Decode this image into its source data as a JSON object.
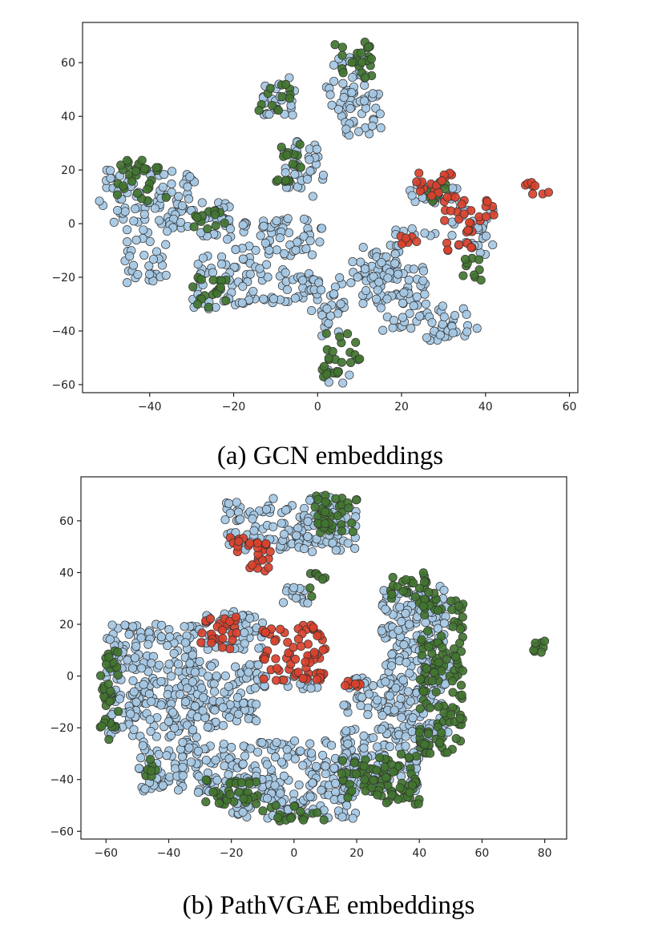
{
  "chart_data": [
    {
      "type": "scatter",
      "caption": "(a) GCN embeddings",
      "title": "",
      "xlabel": "",
      "ylabel": "",
      "xlim": [
        -56,
        62
      ],
      "ylim": [
        -63,
        75
      ],
      "xticks": [
        -40,
        -20,
        0,
        20,
        40,
        60
      ],
      "yticks": [
        -60,
        -40,
        -20,
        0,
        20,
        40,
        60
      ],
      "grid": false,
      "legend": "none",
      "marker_edge_color": "#333333",
      "series": [
        {
          "color": "#a5c8e4",
          "clusters": [
            {
              "x": [
                -52,
                -28
              ],
              "y": [
                0,
                20
              ]
            },
            {
              "x": [
                -46,
                -36
              ],
              "y": [
                -22,
                -2
              ]
            },
            {
              "x": [
                -36,
                -20
              ],
              "y": [
                -5,
                8
              ]
            },
            {
              "x": [
                -30,
                -16
              ],
              "y": [
                -32,
                -12
              ]
            },
            {
              "x": [
                -18,
                -2
              ],
              "y": [
                -30,
                -15
              ]
            },
            {
              "x": [
                -12,
                2
              ],
              "y": [
                -12,
                2
              ]
            },
            {
              "x": [
                -8,
                2
              ],
              "y": [
                10,
                32
              ]
            },
            {
              "x": [
                -14,
                -4
              ],
              "y": [
                40,
                55
              ]
            },
            {
              "x": [
                2,
                12
              ],
              "y": [
                40,
                64
              ]
            },
            {
              "x": [
                6,
                16
              ],
              "y": [
                32,
                50
              ]
            },
            {
              "x": [
                -2,
                8
              ],
              "y": [
                -42,
                -20
              ]
            },
            {
              "x": [
                10,
                22
              ],
              "y": [
                -30,
                -8
              ]
            },
            {
              "x": [
                14,
                26
              ],
              "y": [
                -40,
                -15
              ]
            },
            {
              "x": [
                18,
                28
              ],
              "y": [
                -5,
                0
              ]
            },
            {
              "x": [
                26,
                38
              ],
              "y": [
                -45,
                -30
              ]
            },
            {
              "x": [
                22,
                36
              ],
              "y": [
                5,
                15
              ]
            },
            {
              "x": [
                32,
                42
              ],
              "y": [
                -12,
                5
              ]
            },
            {
              "x": [
                8,
                20
              ],
              "y": [
                -22,
                -12
              ]
            },
            {
              "x": [
                0,
                8
              ],
              "y": [
                -60,
                -53
              ]
            },
            {
              "x": [
                -22,
                -8
              ],
              "y": [
                -10,
                2
              ]
            }
          ]
        },
        {
          "color": "#41752f",
          "clusters": [
            {
              "x": [
                -48,
                -36
              ],
              "y": [
                8,
                24
              ]
            },
            {
              "x": [
                -30,
                -22
              ],
              "y": [
                -2,
                8
              ]
            },
            {
              "x": [
                -30,
                -20
              ],
              "y": [
                -32,
                -20
              ]
            },
            {
              "x": [
                -14,
                -6
              ],
              "y": [
                42,
                52
              ]
            },
            {
              "x": [
                -10,
                -4
              ],
              "y": [
                14,
                30
              ]
            },
            {
              "x": [
                4,
                14
              ],
              "y": [
                54,
                68
              ]
            },
            {
              "x": [
                2,
                10
              ],
              "y": [
                -52,
                -40
              ]
            },
            {
              "x": [
                26,
                32
              ],
              "y": [
                8,
                18
              ]
            },
            {
              "x": [
                34,
                40
              ],
              "y": [
                -22,
                -12
              ]
            },
            {
              "x": [
                -2,
                6
              ],
              "y": [
                -58,
                -52
              ]
            }
          ]
        },
        {
          "color": "#d9412c",
          "clusters": [
            {
              "x": [
                22,
                32
              ],
              "y": [
                8,
                20
              ]
            },
            {
              "x": [
                30,
                42
              ],
              "y": [
                0,
                10
              ]
            },
            {
              "x": [
                48,
                56
              ],
              "y": [
                11,
                17
              ]
            },
            {
              "x": [
                30,
                38
              ],
              "y": [
                -10,
                -2
              ]
            },
            {
              "x": [
                18,
                24
              ],
              "y": [
                -8,
                -4
              ]
            }
          ]
        }
      ]
    },
    {
      "type": "scatter",
      "caption": "(b) PathVGAE embeddings",
      "title": "",
      "xlabel": "",
      "ylabel": "",
      "xlim": [
        -68,
        87
      ],
      "ylim": [
        -63,
        77
      ],
      "xticks": [
        -60,
        -40,
        -20,
        0,
        20,
        40,
        60,
        80
      ],
      "yticks": [
        -60,
        -40,
        -20,
        0,
        20,
        40,
        60
      ],
      "grid": false,
      "legend": "none",
      "marker_edge_color": "#333333",
      "series": [
        {
          "color": "#a5c8e4",
          "clusters": [
            {
              "x": [
                -22,
                20
              ],
              "y": [
                48,
                70
              ]
            },
            {
              "x": [
                -60,
                -30
              ],
              "y": [
                -25,
                20
              ]
            },
            {
              "x": [
                -35,
                -10
              ],
              "y": [
                -20,
                5
              ]
            },
            {
              "x": [
                -50,
                -20
              ],
              "y": [
                -45,
                -25
              ]
            },
            {
              "x": [
                -20,
                20
              ],
              "y": [
                -55,
                -25
              ]
            },
            {
              "x": [
                15,
                40
              ],
              "y": [
                -45,
                -20
              ]
            },
            {
              "x": [
                15,
                35
              ],
              "y": [
                -15,
                0
              ]
            },
            {
              "x": [
                28,
                50
              ],
              "y": [
                -25,
                35
              ]
            },
            {
              "x": [
                -30,
                -10
              ],
              "y": [
                10,
                25
              ]
            },
            {
              "x": [
                -4,
                6
              ],
              "y": [
                28,
                36
              ]
            },
            {
              "x": [
                -10,
                10
              ],
              "y": [
                -5,
                0
              ]
            }
          ]
        },
        {
          "color": "#41752f",
          "clusters": [
            {
              "x": [
                -62,
                -56
              ],
              "y": [
                -25,
                10
              ]
            },
            {
              "x": [
                -48,
                -44
              ],
              "y": [
                -40,
                -32
              ]
            },
            {
              "x": [
                -30,
                -10
              ],
              "y": [
                -50,
                -40
              ]
            },
            {
              "x": [
                -10,
                10
              ],
              "y": [
                -56,
                -50
              ]
            },
            {
              "x": [
                15,
                40
              ],
              "y": [
                -50,
                -30
              ]
            },
            {
              "x": [
                40,
                54
              ],
              "y": [
                -30,
                30
              ]
            },
            {
              "x": [
                30,
                45
              ],
              "y": [
                30,
                40
              ]
            },
            {
              "x": [
                5,
                20
              ],
              "y": [
                55,
                70
              ]
            },
            {
              "x": [
                76,
                80
              ],
              "y": [
                8,
                14
              ]
            },
            {
              "x": [
                5,
                10
              ],
              "y": [
                30,
                40
              ]
            }
          ]
        },
        {
          "color": "#d9412c",
          "clusters": [
            {
              "x": [
                -10,
                10
              ],
              "y": [
                -2,
                20
              ]
            },
            {
              "x": [
                -30,
                -18
              ],
              "y": [
                10,
                24
              ]
            },
            {
              "x": [
                -16,
                -6
              ],
              "y": [
                40,
                52
              ]
            },
            {
              "x": [
                -22,
                -14
              ],
              "y": [
                48,
                54
              ]
            },
            {
              "x": [
                16,
                22
              ],
              "y": [
                -4,
                -2
              ]
            }
          ]
        }
      ]
    }
  ]
}
